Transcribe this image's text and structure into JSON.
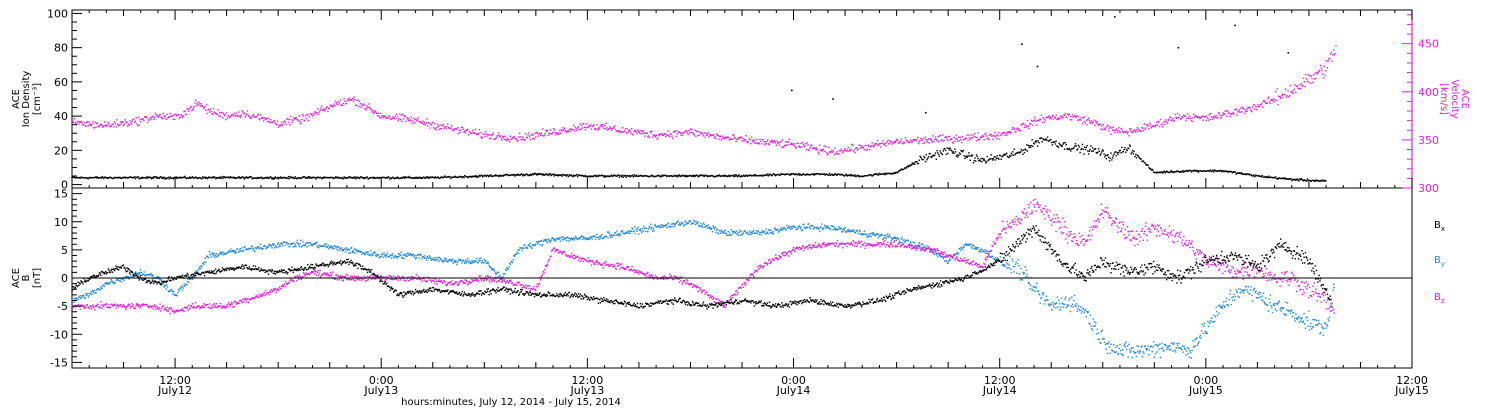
{
  "colors": {
    "black": "#000000",
    "magenta": "#e11ee1",
    "blue": "#1e88e5"
  },
  "footer": {
    "caption": "hours:minutes, July 12, 2014 - July 15, 2014"
  },
  "chart_data": [
    {
      "type": "scatter",
      "panel": "top",
      "ylabel_left": [
        "ACE",
        "Ion Density",
        "[cm⁻³]"
      ],
      "ylabel_right": [
        "ACE",
        "Velocity",
        "[km/s]"
      ],
      "x_axis": {
        "unit": "hours since 2014-07-12 00:00 UT",
        "range": [
          6,
          84
        ],
        "tick_labels": [
          {
            "x": 12,
            "time": "12:00",
            "date": "July12"
          },
          {
            "x": 24,
            "time": "0:00",
            "date": "July13"
          },
          {
            "x": 36,
            "time": "12:00",
            "date": "July13"
          },
          {
            "x": 48,
            "time": "0:00",
            "date": "July14"
          },
          {
            "x": 60,
            "time": "12:00",
            "date": "July14"
          },
          {
            "x": 72,
            "time": "0:00",
            "date": "July15"
          },
          {
            "x": 84,
            "time": "12:00",
            "date": "July15"
          }
        ]
      },
      "y_left": {
        "range": [
          -2,
          102
        ],
        "ticks": [
          0,
          20,
          40,
          60,
          80,
          100
        ]
      },
      "y_right": {
        "range": [
          300,
          485
        ],
        "ticks": [
          300,
          350,
          400,
          450
        ]
      },
      "series": [
        {
          "name": "Ion Density",
          "color": "#000000",
          "axis": "left",
          "x": [
            6,
            9,
            12,
            15,
            18,
            21,
            24,
            27,
            30,
            33,
            36,
            39,
            42,
            45,
            48,
            50,
            52,
            54,
            55.5,
            57,
            59,
            61,
            62.5,
            64,
            65.5,
            66.5,
            67.5,
            69,
            71,
            73,
            75,
            77,
            79
          ],
          "y": [
            4,
            4,
            4,
            4,
            4,
            4,
            4,
            4,
            5,
            6,
            5,
            5,
            5,
            5,
            6,
            6,
            5,
            7,
            15,
            20,
            14,
            18,
            27,
            22,
            20,
            16,
            22,
            7,
            8,
            8,
            5,
            3,
            2
          ]
        },
        {
          "name": "Velocity",
          "color": "#e11ee1",
          "axis": "right",
          "x": [
            6,
            8,
            10,
            11,
            12,
            12.7,
            13.3,
            14,
            15,
            16,
            18,
            19.5,
            20.5,
            21.5,
            22.3,
            22.6,
            24,
            26,
            28,
            30,
            32,
            34,
            36,
            38,
            40,
            42,
            44,
            46,
            48,
            49.5,
            50.5,
            52,
            54,
            56,
            58,
            60,
            61.5,
            62.5,
            64,
            65.5,
            66.5,
            67.5,
            69,
            70.5,
            72,
            73.5,
            75,
            76,
            77,
            78,
            79,
            79.6
          ],
          "y": [
            368,
            365,
            370,
            375,
            373,
            380,
            388,
            380,
            375,
            378,
            367,
            372,
            380,
            388,
            392,
            390,
            375,
            370,
            362,
            355,
            352,
            358,
            365,
            360,
            355,
            358,
            352,
            348,
            345,
            340,
            338,
            342,
            348,
            350,
            352,
            355,
            365,
            372,
            375,
            368,
            360,
            358,
            365,
            375,
            372,
            378,
            385,
            392,
            402,
            412,
            425,
            445
          ]
        }
      ],
      "outliers": [
        {
          "x": 47.9,
          "y": 55
        },
        {
          "x": 50.3,
          "y": 50
        },
        {
          "x": 55.7,
          "y": 42
        },
        {
          "x": 61.3,
          "y": 82
        },
        {
          "x": 62.2,
          "y": 69
        },
        {
          "x": 66.7,
          "y": 98
        },
        {
          "x": 70.4,
          "y": 80
        },
        {
          "x": 73.7,
          "y": 93
        },
        {
          "x": 76.8,
          "y": 77
        }
      ]
    },
    {
      "type": "scatter",
      "panel": "bottom",
      "ylabel_left": [
        "ACE",
        "B",
        "[nT]"
      ],
      "x_axis": {
        "unit": "hours since 2014-07-12 00:00 UT",
        "range": [
          6,
          84
        ]
      },
      "y_left": {
        "range": [
          -16,
          16
        ],
        "ticks": [
          -15,
          -10,
          -5,
          0,
          5,
          10,
          15
        ]
      },
      "zero_line": 0,
      "series": [
        {
          "name": "Bx",
          "label": {
            "main": "B",
            "sub": "x"
          },
          "color": "#000000",
          "x": [
            6,
            7,
            8,
            9,
            10,
            11,
            12,
            14,
            16,
            18,
            20,
            22,
            23.5,
            25,
            27,
            29,
            31,
            33,
            35,
            37,
            39,
            41,
            43,
            45,
            47,
            49,
            51,
            53,
            55,
            56.5,
            58,
            60,
            61,
            62,
            63,
            64,
            65,
            66,
            67.5,
            69,
            70.5,
            72,
            73.5,
            75,
            76.5,
            78,
            79.3
          ],
          "y": [
            -2,
            0,
            1,
            2,
            0,
            -1,
            0,
            1,
            2,
            1,
            2,
            3,
            1,
            -3,
            -2,
            -3,
            -2,
            -3,
            -3,
            -4,
            -5,
            -4,
            -5,
            -4,
            -5,
            -4,
            -5,
            -4,
            -2,
            -1,
            0,
            3,
            6,
            9,
            5,
            2,
            0,
            3,
            1,
            2,
            0,
            3,
            4,
            2,
            6,
            3,
            -4
          ]
        },
        {
          "name": "By",
          "label": {
            "main": "B",
            "sub": "y"
          },
          "color": "#1e88e5",
          "x": [
            6,
            7,
            8,
            9,
            10,
            11,
            12,
            13,
            14,
            16,
            18,
            20,
            22,
            24,
            26,
            28,
            30,
            31,
            32,
            33,
            34,
            36,
            38,
            40,
            42,
            44,
            46,
            48,
            50,
            52,
            54,
            56,
            57,
            58,
            59,
            60,
            61,
            62,
            63,
            64,
            65,
            66,
            67,
            68,
            70,
            71,
            72,
            73,
            74,
            75,
            76,
            77,
            78,
            79,
            79.5
          ],
          "y": [
            -4,
            -3,
            -1,
            0,
            1,
            0,
            -3,
            0,
            4,
            5,
            6,
            6,
            5,
            4,
            4,
            3,
            3,
            0,
            5,
            6,
            7,
            7,
            8,
            9,
            10,
            8,
            8,
            9,
            9,
            8,
            7,
            5,
            3,
            6,
            5,
            3,
            2,
            -2,
            -5,
            -4,
            -6,
            -11,
            -13,
            -13,
            -12,
            -13,
            -9,
            -5,
            -2,
            -3,
            -5,
            -6,
            -8,
            -9,
            -2
          ]
        },
        {
          "name": "Bz",
          "label": {
            "main": "B",
            "sub": "z"
          },
          "color": "#e11ee1",
          "x": [
            6,
            7,
            8,
            9,
            10,
            11,
            12,
            13,
            14,
            15,
            16,
            17,
            18,
            19,
            20,
            22,
            24,
            26,
            28,
            30,
            32,
            33,
            34,
            35,
            36,
            38,
            39,
            40,
            41,
            42,
            43,
            44,
            46,
            48,
            50,
            52,
            54,
            56,
            57,
            58,
            59,
            60,
            61,
            62,
            63,
            64,
            65,
            66,
            67,
            68,
            69,
            70,
            71,
            72,
            73,
            74,
            75,
            76,
            77,
            78,
            79,
            79.5
          ],
          "y": [
            -5,
            -5,
            -5,
            -5,
            -5,
            -5,
            -6,
            -5,
            -5,
            -5,
            -4,
            -3,
            -2,
            0,
            1,
            0,
            0,
            0,
            -1,
            0,
            -1,
            -2,
            5,
            4,
            3,
            2,
            1,
            0,
            0,
            -1,
            -3,
            -5,
            2,
            5,
            6,
            6,
            6,
            5,
            4,
            3,
            2,
            8,
            10,
            13,
            11,
            8,
            6,
            12,
            9,
            7,
            9,
            8,
            6,
            3,
            2,
            1,
            2,
            0,
            0,
            -2,
            -4,
            -6
          ]
        }
      ]
    }
  ]
}
